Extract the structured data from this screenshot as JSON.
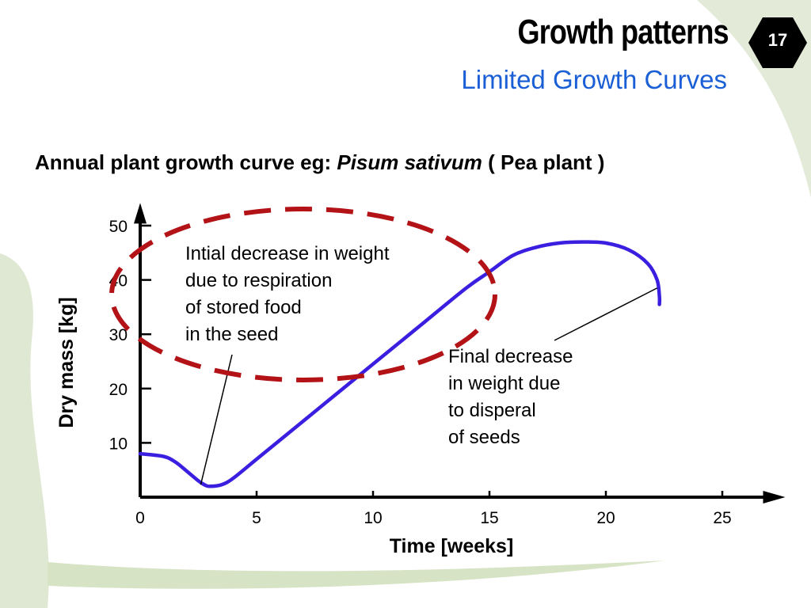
{
  "slide": {
    "title": "Growth patterns",
    "subtitle": "Limited Growth Curves",
    "number": "17",
    "caption_prefix": "Annual plant growth curve eg: ",
    "caption_species": "Pisum sativum",
    "caption_suffix": " ( Pea plant )"
  },
  "colors": {
    "curve": "#3a1fe0",
    "highlight_ellipse": "#b31217",
    "subtitle": "#1a5fd6",
    "badge": "#000000",
    "decoration": "#dfe8d2"
  },
  "chart_data": {
    "type": "line",
    "title": "",
    "xlabel": "Time [weeks]",
    "ylabel": "Dry mass [kg]",
    "xlim": [
      0,
      27.5
    ],
    "ylim": [
      0,
      53
    ],
    "xticks": [
      0,
      5,
      10,
      15,
      20,
      25
    ],
    "yticks": [
      10,
      20,
      30,
      40,
      50
    ],
    "grid": false,
    "series": [
      {
        "x": [
          0,
          1,
          1.5,
          2,
          2.5,
          2.8,
          3,
          3.5,
          4,
          5,
          6,
          8,
          10,
          12,
          14,
          15,
          16,
          17,
          18,
          19,
          20,
          21,
          21.8,
          22.2,
          22.3,
          22.3
        ],
        "y": [
          8,
          7.5,
          6.5,
          4.8,
          3,
          2.2,
          2,
          2.3,
          3.5,
          7,
          10.5,
          17.5,
          24.5,
          31.5,
          38.5,
          41.5,
          44.5,
          46,
          46.8,
          47,
          46.8,
          45.5,
          43,
          40,
          37,
          35.5
        ]
      }
    ],
    "annotations": [
      {
        "lines": [
          "Intial decrease in weight",
          "due to respiration",
          "of stored food",
          "in the seed"
        ],
        "points_to": [
          2.6,
          2.3
        ]
      },
      {
        "lines": [
          "Final decrease",
          "in weight due",
          "to disperal",
          "of seeds"
        ],
        "points_to": [
          22.2,
          38.5
        ]
      }
    ]
  }
}
